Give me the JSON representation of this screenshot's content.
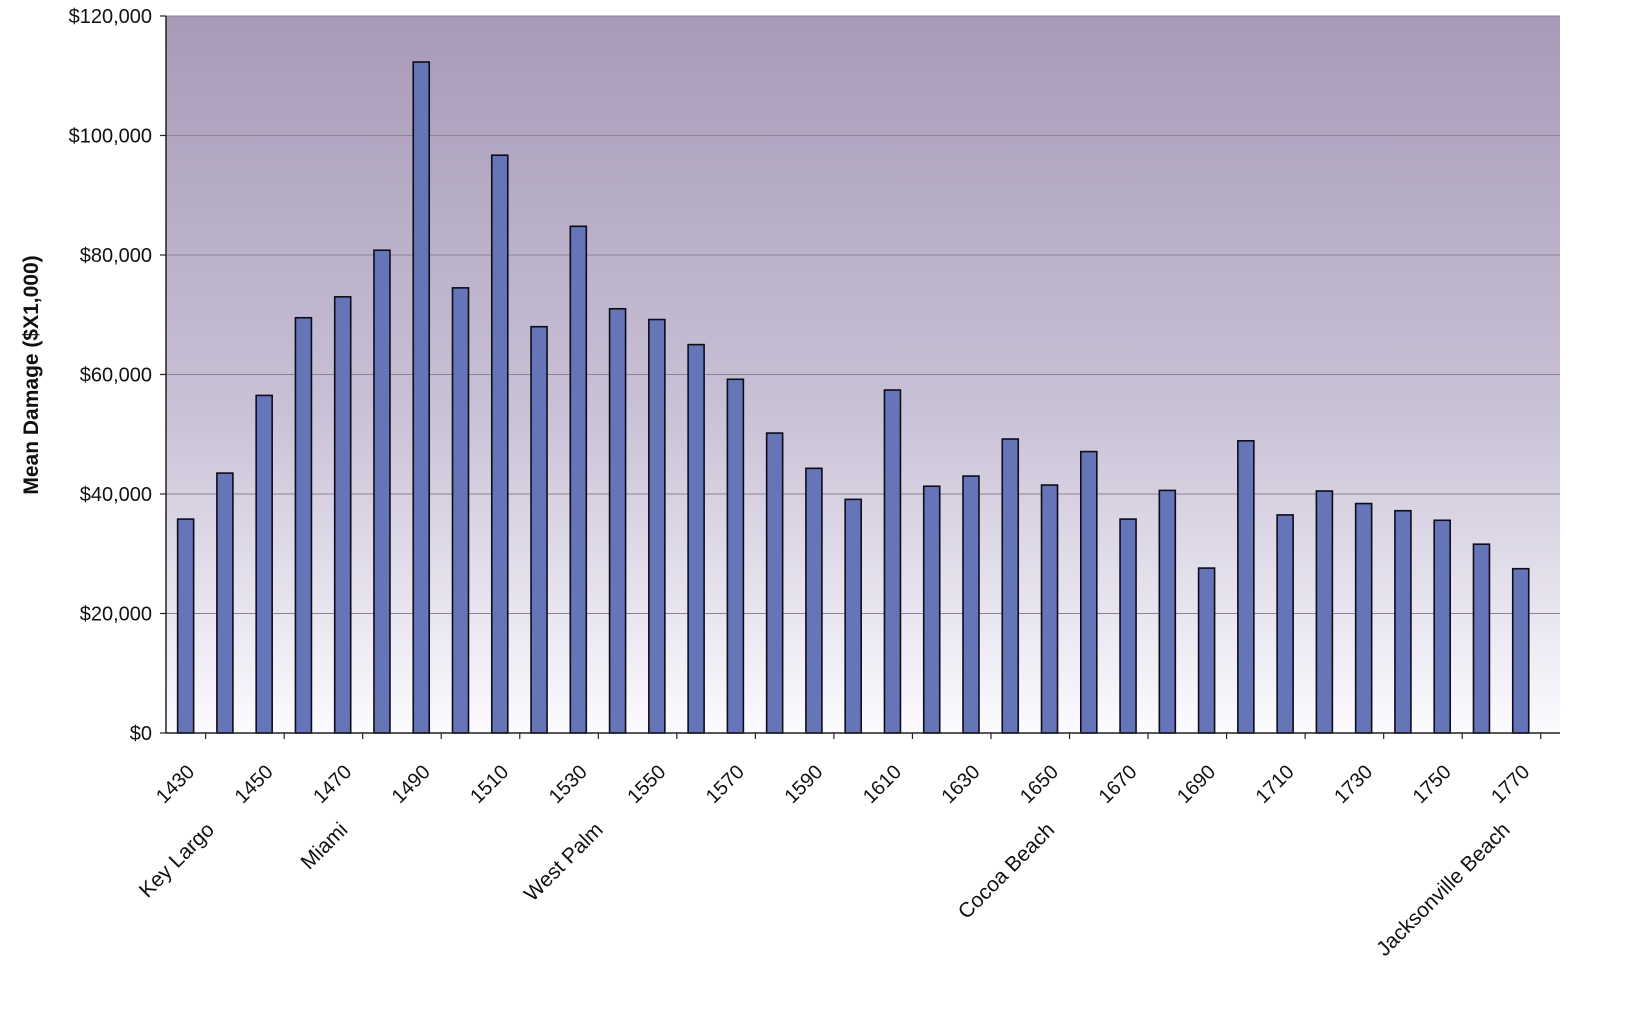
{
  "chart_data": {
    "type": "bar",
    "ylabel": "Mean Damage ($X1,000)",
    "xlabel": "",
    "ylim": [
      0,
      120000
    ],
    "yticks": [
      0,
      20000,
      40000,
      60000,
      80000,
      100000,
      120000
    ],
    "ytick_labels": [
      "$0",
      "$20,000",
      "$40,000",
      "$60,000",
      "$80,000",
      "$100,000",
      "$120,000"
    ],
    "grid": true,
    "x_range": [
      1425,
      1780
    ],
    "xticks": [
      1430,
      1450,
      1470,
      1490,
      1510,
      1530,
      1550,
      1570,
      1590,
      1610,
      1630,
      1650,
      1670,
      1690,
      1710,
      1730,
      1750,
      1770
    ],
    "xtick_labels": [
      "1430",
      "1450",
      "1470",
      "1490",
      "1510",
      "1530",
      "1550",
      "1570",
      "1590",
      "1610",
      "1630",
      "1650",
      "1670",
      "1690",
      "1710",
      "1730",
      "1750",
      "1770"
    ],
    "x": [
      1430,
      1440,
      1450,
      1460,
      1470,
      1480,
      1490,
      1500,
      1510,
      1520,
      1530,
      1540,
      1550,
      1560,
      1570,
      1580,
      1590,
      1600,
      1610,
      1620,
      1630,
      1640,
      1650,
      1660,
      1670,
      1680,
      1690,
      1700,
      1710,
      1720,
      1730,
      1740,
      1750,
      1760,
      1770
    ],
    "values": [
      35800,
      43500,
      56500,
      69500,
      73000,
      80800,
      112300,
      74500,
      96700,
      68000,
      84800,
      71000,
      69200,
      65000,
      59200,
      50200,
      44300,
      39100,
      57400,
      41300,
      43000,
      49200,
      41500,
      47100,
      35800,
      40600,
      27600,
      48900,
      36500,
      40500,
      38400,
      37200,
      35600,
      31600,
      27500
    ],
    "location_labels": [
      {
        "label": "Key Largo",
        "x": 1434
      },
      {
        "label": "Miami",
        "x": 1468
      },
      {
        "label": "West Palm",
        "x": 1533
      },
      {
        "label": "Cocoa Beach",
        "x": 1648
      },
      {
        "label": "Jacksonville Beach",
        "x": 1764
      }
    ],
    "colors": {
      "bar_fill": "#6674b8",
      "bar_stroke": "#0d0d1a",
      "plot_top": "#a79ab8",
      "plot_bottom": "#fcfbff",
      "grid": "#8a8494"
    }
  }
}
